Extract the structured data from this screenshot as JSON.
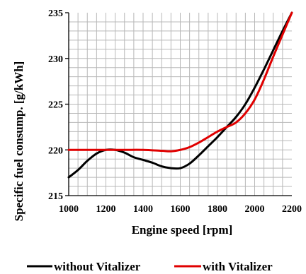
{
  "chart_data": {
    "type": "line",
    "xlabel": "Engine speed [rpm]",
    "ylabel": "Specific fuel consump. [g/kWh]",
    "xlim": [
      1000,
      2200
    ],
    "ylim": [
      215,
      235
    ],
    "x_ticks": [
      "1000",
      "1200",
      "1400",
      "1600",
      "1800",
      "2000",
      "2200"
    ],
    "y_ticks": [
      "215",
      "220",
      "225",
      "230",
      "235"
    ],
    "x_minor_step": 50,
    "y_minor_step": 1,
    "grid": true,
    "legend_position": "bottom",
    "series": [
      {
        "name": "without Vitalizer",
        "color": "#000000",
        "x": [
          1000,
          1050,
          1100,
          1150,
          1200,
          1250,
          1300,
          1350,
          1400,
          1450,
          1500,
          1550,
          1600,
          1650,
          1700,
          1750,
          1800,
          1850,
          1900,
          1950,
          2000,
          2050,
          2100,
          2150,
          2200
        ],
        "y": [
          217.0,
          217.8,
          218.8,
          219.6,
          220.0,
          220.0,
          219.7,
          219.2,
          218.9,
          218.6,
          218.2,
          218.0,
          218.0,
          218.5,
          219.4,
          220.4,
          221.4,
          222.5,
          223.6,
          225.0,
          226.8,
          228.8,
          230.9,
          233.0,
          235.0
        ]
      },
      {
        "name": "with Vitalizer",
        "color": "#e00000",
        "x": [
          1000,
          1100,
          1200,
          1300,
          1400,
          1500,
          1550,
          1600,
          1650,
          1700,
          1750,
          1800,
          1850,
          1900,
          1950,
          2000,
          2050,
          2100,
          2150,
          2200
        ],
        "y": [
          220.0,
          220.0,
          220.0,
          220.0,
          220.0,
          219.9,
          219.85,
          220.0,
          220.3,
          220.8,
          221.4,
          222.0,
          222.5,
          223.0,
          224.0,
          225.5,
          227.7,
          230.2,
          232.6,
          235.0
        ]
      }
    ]
  }
}
